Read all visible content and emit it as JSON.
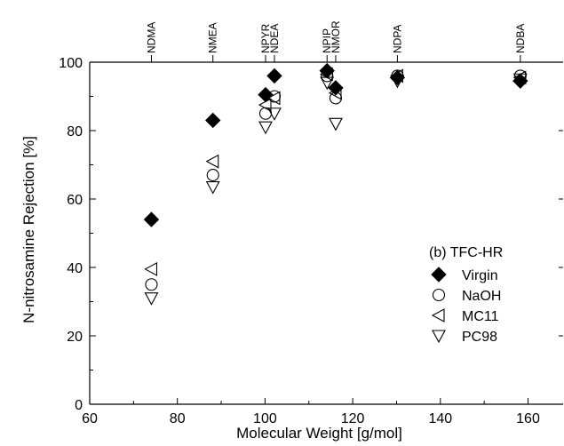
{
  "chart_data": {
    "type": "scatter",
    "xlabel": "Molecular Weight [g/mol]",
    "ylabel": "N-nitrosamine Rejection [%]",
    "xlim": [
      60,
      168
    ],
    "ylim": [
      0,
      100
    ],
    "x_ticks": [
      60,
      80,
      100,
      120,
      140,
      160
    ],
    "y_ticks": [
      0,
      20,
      40,
      60,
      80,
      100
    ],
    "grid": false,
    "legend_title": "(b) TFC-HR",
    "legend_position": "bottom-right",
    "compounds": [
      {
        "name": "NDMA",
        "mw": 74.08
      },
      {
        "name": "NMEA",
        "mw": 88.11
      },
      {
        "name": "NPYR",
        "mw": 100.12
      },
      {
        "name": "NDEA",
        "mw": 102.14
      },
      {
        "name": "NPIP",
        "mw": 114.15
      },
      {
        "name": "NMOR",
        "mw": 116.12
      },
      {
        "name": "NDPA",
        "mw": 130.19
      },
      {
        "name": "NDBA",
        "mw": 158.24
      }
    ],
    "series": [
      {
        "name": "Virgin",
        "marker": "diamond-filled",
        "x": [
          74.08,
          88.11,
          100.12,
          102.14,
          114.15,
          116.12,
          130.19,
          158.24
        ],
        "y": [
          54,
          83,
          90.5,
          96,
          97.5,
          92.5,
          95.5,
          94.5
        ]
      },
      {
        "name": "NaOH",
        "marker": "circle-open",
        "x": [
          74.08,
          88.11,
          100.12,
          102.14,
          114.15,
          116.12,
          130.19,
          158.24
        ],
        "y": [
          35,
          67,
          85,
          90,
          96,
          89.5,
          96,
          96
        ]
      },
      {
        "name": "MC11",
        "marker": "triangle-left-open",
        "x": [
          74.08,
          88.11,
          100.12,
          102.14,
          114.15,
          116.12,
          130.19,
          158.24
        ],
        "y": [
          39.5,
          71,
          87.5,
          89.5,
          96.5,
          91,
          96,
          95.5
        ]
      },
      {
        "name": "PC98",
        "marker": "triangle-down-open",
        "x": [
          74.08,
          88.11,
          100.12,
          102.14,
          114.15,
          116.12,
          130.19,
          158.24
        ],
        "y": [
          31,
          63.5,
          81,
          85,
          94,
          82,
          94.5,
          95
        ]
      }
    ]
  }
}
